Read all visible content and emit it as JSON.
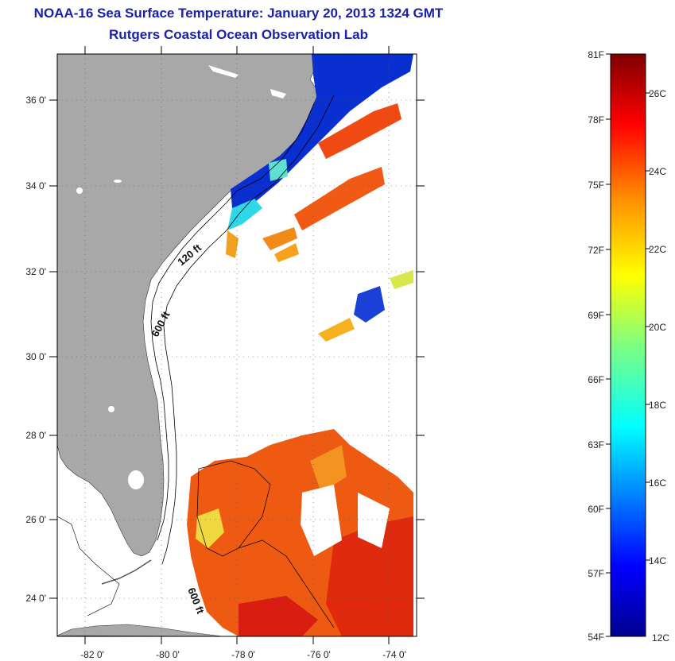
{
  "header": {
    "title_line1": "NOAA-16 Sea Surface Temperature:  January 20, 2013 1324 GMT",
    "title_line2": "Rutgers Coastal Ocean Observation Lab"
  },
  "map": {
    "lat_ticks": [
      "24 0'",
      "26 0'",
      "28 0'",
      "30 0'",
      "32 0'",
      "34 0'",
      "36 0'"
    ],
    "lon_ticks": [
      "-82 0'",
      "-80 0'",
      "-78 0'",
      "-76 0'",
      "-74 0'"
    ],
    "contour_labels": [
      "120 ft",
      "600 ft",
      "600 ft"
    ],
    "colors": {
      "land": "#a8a8a8",
      "frame": "#000000"
    }
  },
  "colorbar": {
    "fahrenheit_labels": [
      "81F",
      "78F",
      "75F",
      "72F",
      "69F",
      "66F",
      "63F",
      "60F",
      "57F",
      "54F"
    ],
    "celsius_labels": [
      "26C",
      "24C",
      "22C",
      "20C",
      "18C",
      "16C",
      "14C",
      "12C"
    ],
    "range_celsius": [
      12,
      27.2
    ]
  }
}
